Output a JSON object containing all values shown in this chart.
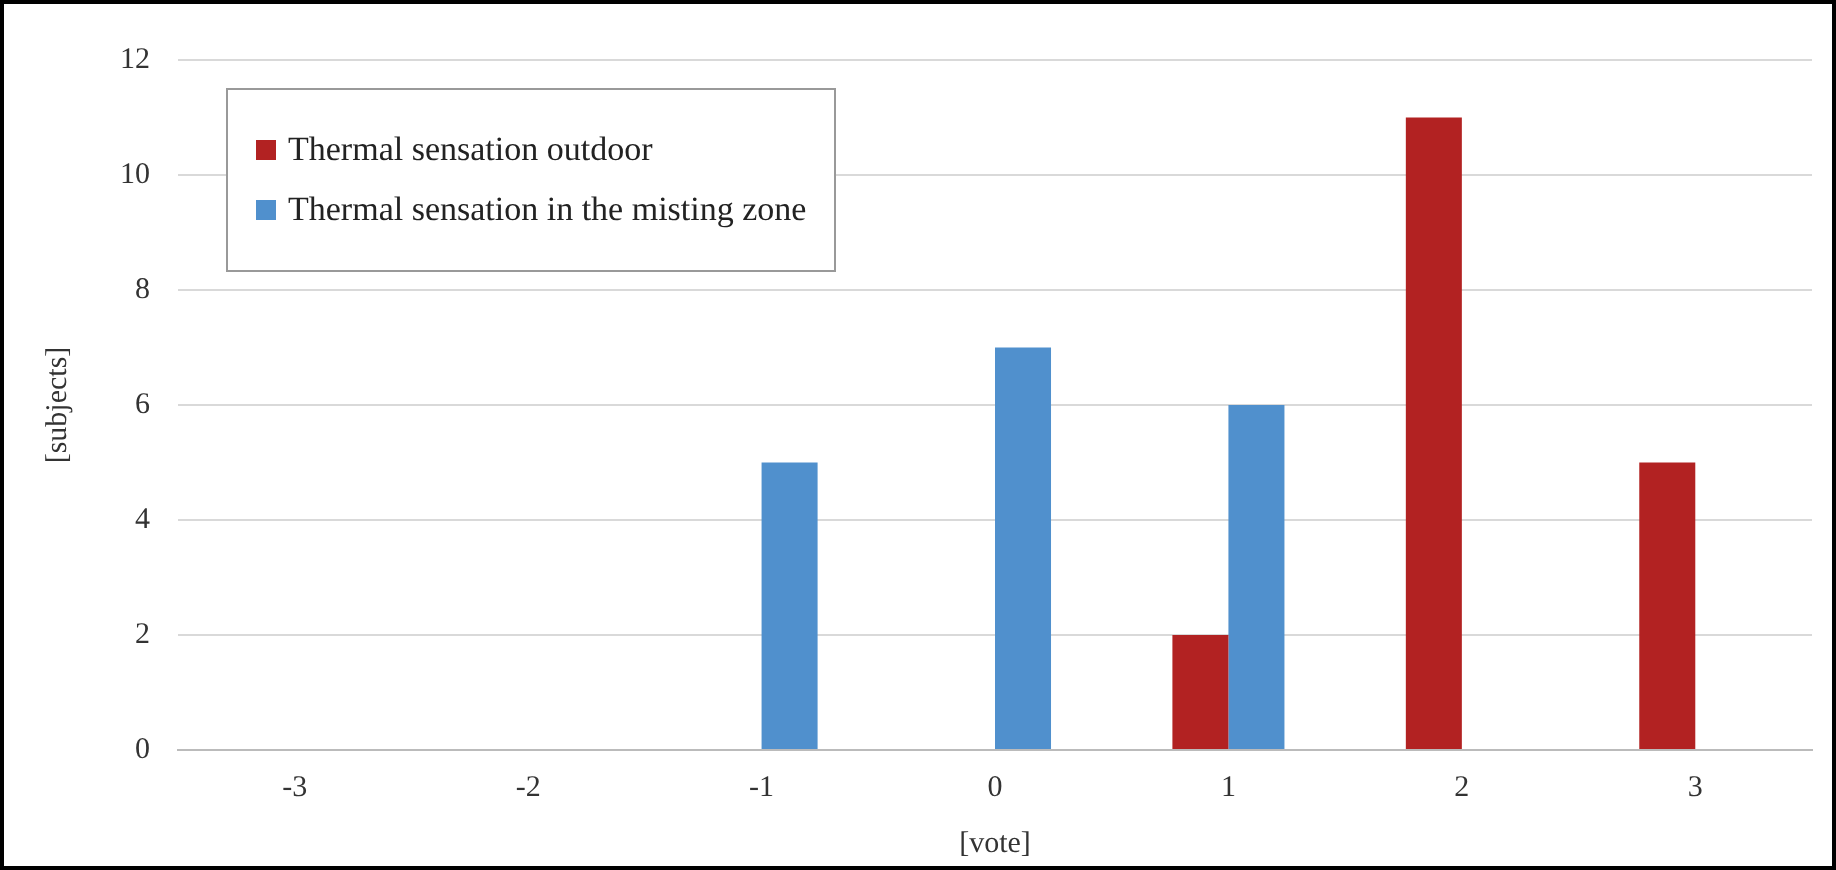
{
  "chart_data": {
    "type": "bar",
    "xlabel": "[vote]",
    "ylabel": "[subjects]",
    "categories": [
      "-3",
      "-2",
      "-1",
      "0",
      "1",
      "2",
      "3"
    ],
    "series": [
      {
        "name": "Thermal sensation outdoor",
        "color": "#b22222",
        "values": [
          0,
          0,
          0,
          0,
          2,
          11,
          5
        ]
      },
      {
        "name": "Thermal sensation in the misting zone",
        "color": "#5090cd",
        "values": [
          0,
          0,
          5,
          7,
          6,
          0,
          0
        ]
      }
    ],
    "ylim": [
      0,
      12
    ],
    "yticks": [
      0,
      2,
      4,
      6,
      8,
      10,
      12
    ],
    "grid": "y",
    "legend": "top left"
  }
}
